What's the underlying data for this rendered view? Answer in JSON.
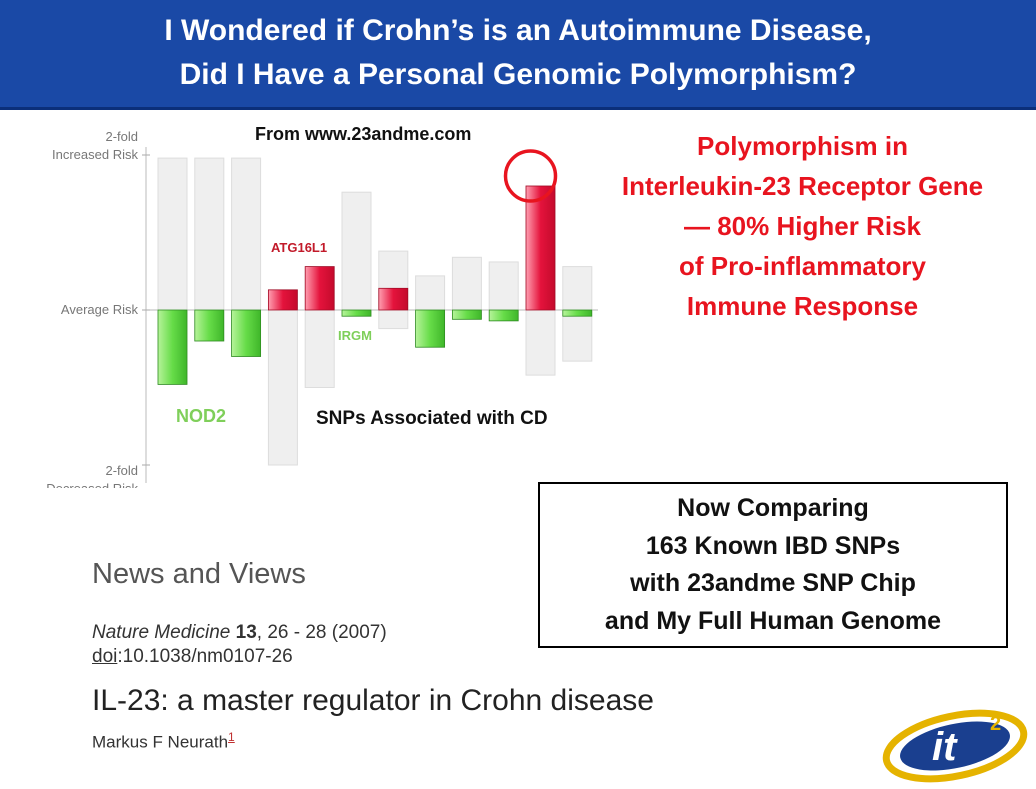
{
  "header": {
    "line1": "I Wondered if Crohn’s is an Autoimmune Disease,",
    "line2": "Did I Have a Personal Genomic Polymorphism?"
  },
  "source_note": "From www.23andme.com",
  "callout": {
    "lines": [
      "Polymorphism in",
      "Interleukin-23 Receptor Gene",
      "— 80% Higher Risk",
      "of Pro-inflammatory",
      "Immune Response"
    ],
    "color": "#e8141f"
  },
  "chart_caption": "SNPs Associated with CD",
  "chart_data": {
    "type": "bar",
    "y_tick_labels": [
      {
        "line1": "2-fold",
        "line2": "Increased Risk",
        "value": 1
      },
      {
        "line1": "Average Risk",
        "line2": "",
        "value": 0
      },
      {
        "line1": "2-fold",
        "line2": "Decreased Risk",
        "value": -1
      }
    ],
    "ylim": [
      -1,
      1
    ],
    "annotations": [
      {
        "text": "ATG16L1",
        "color": "#c21a2a"
      },
      {
        "text": "IRGM",
        "color": "#7fcf5a"
      },
      {
        "text": "NOD2",
        "color": "#7fcf5a"
      }
    ],
    "bars": [
      {
        "value": -0.48,
        "range": [
          -0.48,
          0.98
        ],
        "color": "green"
      },
      {
        "value": -0.2,
        "range": [
          -0.2,
          0.98
        ],
        "color": "green"
      },
      {
        "value": -0.3,
        "range": [
          -0.3,
          0.98
        ],
        "color": "green"
      },
      {
        "value": 0.13,
        "range": [
          -1.0,
          0.13
        ],
        "color": "red"
      },
      {
        "value": 0.28,
        "range": [
          -0.5,
          0.28
        ],
        "color": "red"
      },
      {
        "value": -0.04,
        "range": [
          -0.04,
          0.76
        ],
        "color": "green"
      },
      {
        "value": 0.14,
        "range": [
          -0.12,
          0.38
        ],
        "color": "red"
      },
      {
        "value": -0.24,
        "range": [
          -0.24,
          0.22
        ],
        "color": "green"
      },
      {
        "value": -0.06,
        "range": [
          -0.06,
          0.34
        ],
        "color": "green"
      },
      {
        "value": -0.07,
        "range": [
          -0.07,
          0.31
        ],
        "color": "green"
      },
      {
        "value": 0.8,
        "range": [
          -0.42,
          0.8
        ],
        "color": "red"
      },
      {
        "value": -0.04,
        "range": [
          -0.33,
          0.28
        ],
        "color": "green"
      }
    ],
    "highlighted_bar_index": 10,
    "colors": {
      "increase": "#e4133c",
      "decrease": "#66dc48",
      "range": "#efefef"
    }
  },
  "comparison_box": {
    "lines": [
      "Now Comparing",
      "163 Known IBD SNPs",
      "with 23andme SNP Chip",
      "and My Full Human Genome"
    ]
  },
  "article": {
    "section": "News and Views",
    "journal": "Nature Medicine",
    "volume": "13",
    "pages": ", 26 - 28 (2007)",
    "doi_label": "doi",
    "doi_value": ":10.1038/nm0107-26",
    "title": "IL-23: a master regulator in Crohn disease",
    "author": "Markus F Neurath",
    "author_ref": "1"
  },
  "logo": {
    "text": "it",
    "superscript": "2"
  }
}
